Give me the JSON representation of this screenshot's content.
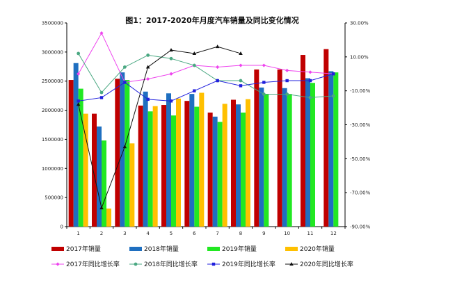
{
  "chart_data": {
    "type": "bar",
    "title": "图1：2017-2020年月度汽车销量及同比变化情况",
    "categories": [
      "1",
      "2",
      "3",
      "4",
      "5",
      "6",
      "7",
      "8",
      "9",
      "10",
      "11",
      "12"
    ],
    "left_axis": {
      "ylim": [
        0,
        3500000
      ],
      "ticks": [
        "0",
        "500000",
        "1000000",
        "1500000",
        "2000000",
        "2500000",
        "3000000",
        "3500000"
      ]
    },
    "right_axis": {
      "ylim": [
        -0.9,
        0.3
      ],
      "ticks": [
        "-90.00%",
        "-70.00%",
        "-50.00%",
        "-30.00%",
        "-10.00%",
        "10.00%",
        "30.00%"
      ]
    },
    "bar_series": [
      {
        "name": "2017年销量",
        "color": "#c00000",
        "values": [
          2520000,
          1940000,
          2540000,
          2080000,
          2090000,
          2160000,
          1960000,
          2180000,
          2700000,
          2700000,
          2950000,
          3050000
        ]
      },
      {
        "name": "2018年销量",
        "color": "#1f6fc0",
        "values": [
          2810000,
          1720000,
          2650000,
          2320000,
          2290000,
          2280000,
          1890000,
          2100000,
          2390000,
          2380000,
          2550000,
          2670000
        ]
      },
      {
        "name": "2019年销量",
        "color": "#22e822",
        "values": [
          2370000,
          1480000,
          2520000,
          1980000,
          1910000,
          2060000,
          1800000,
          1960000,
          2280000,
          2280000,
          2470000,
          2650000
        ]
      },
      {
        "name": "2020年销量",
        "color": "#ffc000",
        "values": [
          1940000,
          310000,
          1430000,
          2070000,
          2200000,
          2300000,
          2110000,
          2190000,
          null,
          null,
          null,
          null
        ]
      }
    ],
    "line_series": [
      {
        "name": "2017年同比增长率",
        "color": "#ee44ee",
        "marker": "diamond",
        "values": [
          0.0,
          0.24,
          -0.05,
          -0.03,
          0.0,
          0.05,
          0.04,
          0.05,
          0.05,
          0.02,
          0.01,
          0.0
        ]
      },
      {
        "name": "2018年同比增长率",
        "color": "#4aa882",
        "marker": "circle",
        "values": [
          0.12,
          -0.11,
          0.04,
          0.11,
          0.09,
          0.05,
          -0.04,
          -0.04,
          -0.12,
          -0.12,
          -0.14,
          -0.13
        ]
      },
      {
        "name": "2019年同比增长率",
        "color": "#2020dd",
        "marker": "square",
        "values": [
          -0.16,
          -0.14,
          -0.05,
          -0.15,
          -0.16,
          -0.1,
          -0.04,
          -0.07,
          -0.05,
          -0.04,
          -0.04,
          0.0
        ]
      },
      {
        "name": "2020年同比增长率",
        "color": "#111111",
        "marker": "triangle",
        "values": [
          -0.18,
          -0.79,
          -0.43,
          0.04,
          0.14,
          0.12,
          0.16,
          0.12,
          null,
          null,
          null,
          null
        ]
      }
    ],
    "grid": false,
    "legend_position": "bottom"
  }
}
